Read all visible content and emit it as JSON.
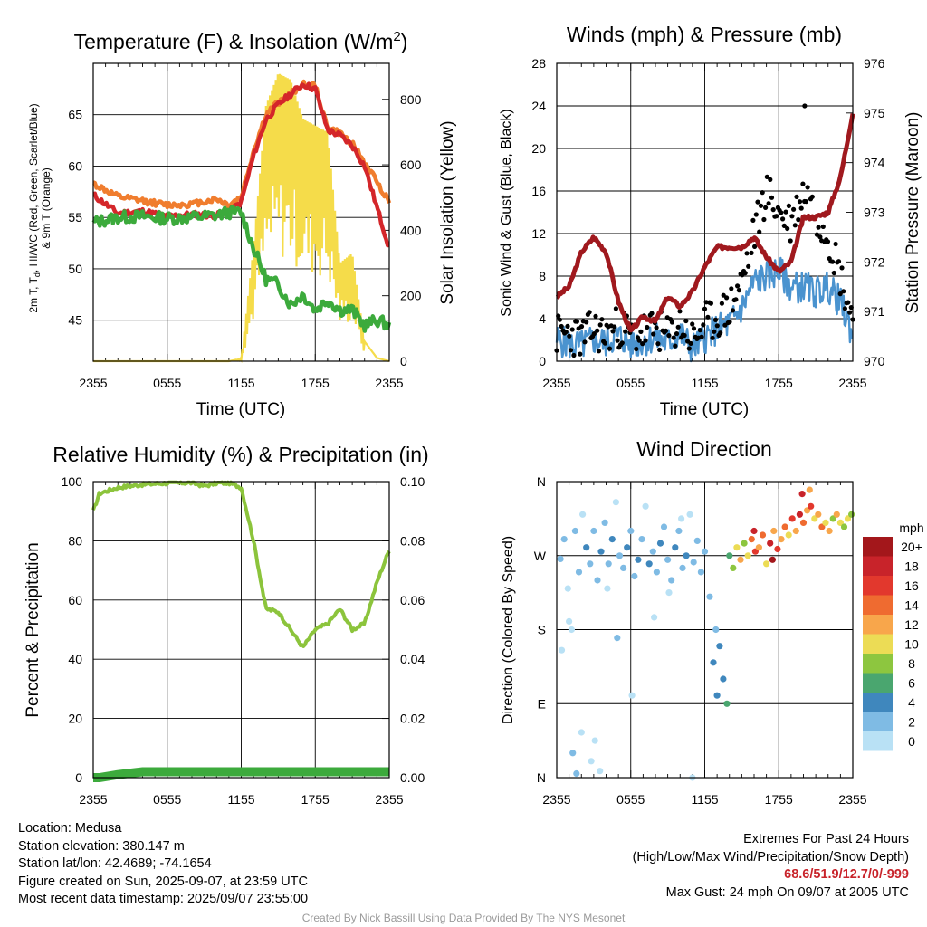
{
  "chart_data": [
    {
      "type": "line",
      "title": "Temperature (F) & Insolation (W/m²)",
      "xlabel": "Time (UTC)",
      "ylabel": "2m T, Td, HI/WC (Red, Green, Scarlet/Blue) & 9m T (Orange)",
      "y2label": "Solar Insolation (Yellow)",
      "x_ticks": [
        "2355",
        "0555",
        "1155",
        "1755",
        "2355"
      ],
      "y_ticks": [
        "45",
        "50",
        "55",
        "60",
        "65"
      ],
      "y2_ticks": [
        "0",
        "200",
        "400",
        "600",
        "800"
      ],
      "ylim": [
        41,
        70
      ],
      "y2lim": [
        0,
        910
      ],
      "x_hours": [
        0,
        2,
        4,
        6,
        8,
        10,
        11,
        12,
        13,
        14,
        15,
        16,
        17,
        18,
        19,
        20,
        21,
        22,
        23,
        24
      ],
      "series": [
        {
          "color": "#d4262a",
          "values": [
            57.2,
            55.4,
            55.6,
            55.1,
            55.3,
            55.2,
            55.5,
            56.5,
            61.0,
            64.5,
            66.0,
            67.0,
            68.0,
            67.5,
            63.5,
            63.0,
            62.0,
            60.0,
            56.0,
            52.0
          ]
        },
        {
          "color": "#f07d2e",
          "values": [
            58.3,
            57.0,
            56.6,
            56.2,
            56.3,
            56.8,
            56.2,
            57.0,
            61.5,
            65.0,
            66.2,
            67.0,
            68.0,
            67.8,
            63.7,
            63.2,
            62.2,
            60.3,
            58.5,
            56.5
          ]
        },
        {
          "color": "#3caa3c",
          "values": [
            54.5,
            55.0,
            55.1,
            54.9,
            55.0,
            55.2,
            55.5,
            55.5,
            52.0,
            49.0,
            48.5,
            46.5,
            47.5,
            46.0,
            47.0,
            46.0,
            46.0,
            44.5,
            45.0,
            44.5
          ]
        },
        {
          "color": "#f5dc4a",
          "values": [
            0,
            0,
            0,
            0,
            0,
            0,
            0,
            8,
            350,
            780,
            880,
            860,
            740,
            720,
            700,
            300,
            330,
            60,
            10,
            0
          ]
        }
      ]
    },
    {
      "type": "line",
      "title": "Winds (mph) & Pressure (mb)",
      "xlabel": "Time (UTC)",
      "ylabel": "Sonic Wind & Gust (Blue, Black)",
      "y2label": "Station Pressure (Maroon)",
      "x_ticks": [
        "2355",
        "0555",
        "1155",
        "1755",
        "2355"
      ],
      "y_ticks": [
        "0",
        "4",
        "8",
        "12",
        "16",
        "20",
        "24",
        "28"
      ],
      "y2_ticks": [
        "970",
        "971",
        "972",
        "973",
        "974",
        "975",
        "976"
      ],
      "ylim": [
        0,
        28
      ],
      "y2lim": [
        970,
        976
      ],
      "x_hours": [
        0,
        1,
        2,
        3,
        4,
        5,
        6,
        7,
        8,
        9,
        10,
        11,
        12,
        13,
        14,
        15,
        16,
        17,
        18,
        19,
        20,
        21,
        22,
        23,
        24
      ],
      "series": [
        {
          "color": "#4a93cf",
          "values": [
            2.0,
            1.6,
            1.5,
            2.0,
            1.8,
            2.4,
            1.6,
            1.9,
            2.2,
            1.7,
            2.6,
            1.2,
            2.2,
            3.0,
            3.5,
            5.0,
            7.5,
            8.0,
            8.5,
            7.0,
            7.0,
            6.5,
            7.0,
            5.5,
            2.5
          ]
        },
        {
          "color": "#000000",
          "values": [
            2.5,
            2.6,
            2.2,
            3.0,
            2.4,
            3.3,
            2.4,
            2.7,
            3.0,
            2.3,
            3.5,
            2.0,
            3.5,
            4.0,
            5.0,
            7.5,
            12.0,
            16.0,
            14.0,
            13.0,
            16.0,
            14.0,
            12.0,
            8.0,
            4.0
          ]
        },
        {
          "color": "#a0191e",
          "values": [
            971.3,
            971.5,
            972.2,
            972.5,
            972.2,
            971.2,
            970.6,
            970.9,
            970.8,
            971.3,
            971.1,
            971.4,
            971.9,
            972.3,
            972.3,
            972.3,
            972.5,
            972.1,
            971.8,
            972.0,
            972.9,
            972.9,
            973.0,
            973.7,
            975.0
          ]
        }
      ],
      "max_gust_point": {
        "x": 20.1,
        "y": 24
      }
    },
    {
      "type": "line",
      "title": "Relative Humidity (%) & Precipitation (in)",
      "ylabel": "Percent & Precipitation",
      "x_ticks": [
        "2355",
        "0555",
        "1155",
        "1755",
        "2355"
      ],
      "y_ticks": [
        "0",
        "20",
        "40",
        "60",
        "80",
        "100"
      ],
      "y2_ticks": [
        "0.00",
        "0.02",
        "0.04",
        "0.06",
        "0.08",
        "0.10"
      ],
      "ylim": [
        0,
        100
      ],
      "y2lim": [
        0,
        0.1
      ],
      "x_hours": [
        0,
        0.5,
        2,
        4,
        6,
        8,
        9,
        10,
        11,
        12,
        13,
        14,
        15,
        16,
        17,
        18,
        19,
        20,
        21,
        22,
        23,
        24
      ],
      "series": [
        {
          "color": "#8cc43c",
          "values": [
            90,
            96,
            98,
            99,
            99.5,
            99.6,
            98.5,
            99.5,
            99.6,
            98.0,
            80.0,
            57.0,
            56.0,
            50.0,
            44.0,
            50.0,
            52.0,
            57.0,
            50.0,
            52.0,
            66.0,
            77.0
          ]
        },
        {
          "color": "#3caa3c",
          "values": [
            0,
            0,
            0.001,
            0.002,
            0.002,
            0.002,
            0.002,
            0.002,
            0.002,
            0.002,
            0.002,
            0.002,
            0.002,
            0.002,
            0.002,
            0.002,
            0.002,
            0.002,
            0.002,
            0.002,
            0.002,
            0.002
          ]
        }
      ]
    },
    {
      "type": "scatter",
      "title": "Wind Direction",
      "ylabel": "Direction (Colored By Speed)",
      "x_ticks": [
        "2355",
        "0555",
        "1155",
        "1755",
        "2355"
      ],
      "y_ticks": [
        "N",
        "E",
        "S",
        "W",
        "N"
      ],
      "y_values_deg": [
        0,
        90,
        180,
        270,
        360
      ],
      "colorbar_title": "mph",
      "colorbar_labels": [
        "20+",
        "18",
        "16",
        "14",
        "12",
        "10",
        "8",
        "6",
        "4",
        "2",
        "0"
      ],
      "colorbar_colors": [
        "#a3171b",
        "#c8232a",
        "#e2382d",
        "#ef6b30",
        "#f8a64b",
        "#ecdc55",
        "#8dc63f",
        "#4aa66f",
        "#3f87bd",
        "#7fbbe4",
        "#b9e1f5"
      ],
      "points": [
        {
          "x": 0.3,
          "y": 266,
          "s": 1
        },
        {
          "x": 0.6,
          "y": 290,
          "s": 1
        },
        {
          "x": 0.9,
          "y": 230,
          "s": 0
        },
        {
          "x": 1.2,
          "y": 180,
          "s": 0
        },
        {
          "x": 1.5,
          "y": 300,
          "s": 1
        },
        {
          "x": 1.8,
          "y": 250,
          "s": 1
        },
        {
          "x": 2.1,
          "y": 320,
          "s": 0
        },
        {
          "x": 2.4,
          "y": 280,
          "s": 2
        },
        {
          "x": 2.7,
          "y": 260,
          "s": 1
        },
        {
          "x": 3.0,
          "y": 300,
          "s": 1
        },
        {
          "x": 3.3,
          "y": 240,
          "s": 1
        },
        {
          "x": 3.6,
          "y": 275,
          "s": 2
        },
        {
          "x": 3.9,
          "y": 310,
          "s": 1
        },
        {
          "x": 4.2,
          "y": 260,
          "s": 1
        },
        {
          "x": 4.5,
          "y": 290,
          "s": 2
        },
        {
          "x": 4.8,
          "y": 335,
          "s": 0
        },
        {
          "x": 5.1,
          "y": 270,
          "s": 1
        },
        {
          "x": 5.4,
          "y": 255,
          "s": 1
        },
        {
          "x": 5.7,
          "y": 280,
          "s": 2
        },
        {
          "x": 6.0,
          "y": 300,
          "s": 1
        },
        {
          "x": 6.3,
          "y": 245,
          "s": 1
        },
        {
          "x": 6.6,
          "y": 265,
          "s": 2
        },
        {
          "x": 6.9,
          "y": 290,
          "s": 1
        },
        {
          "x": 7.2,
          "y": 330,
          "s": 0
        },
        {
          "x": 7.5,
          "y": 260,
          "s": 2
        },
        {
          "x": 7.8,
          "y": 275,
          "s": 1
        },
        {
          "x": 8.1,
          "y": 250,
          "s": 1
        },
        {
          "x": 8.4,
          "y": 285,
          "s": 2
        },
        {
          "x": 8.7,
          "y": 305,
          "s": 1
        },
        {
          "x": 9.0,
          "y": 265,
          "s": 1
        },
        {
          "x": 9.3,
          "y": 240,
          "s": 1
        },
        {
          "x": 9.6,
          "y": 280,
          "s": 2
        },
        {
          "x": 9.9,
          "y": 300,
          "s": 1
        },
        {
          "x": 10.2,
          "y": 255,
          "s": 1
        },
        {
          "x": 10.5,
          "y": 270,
          "s": 2
        },
        {
          "x": 10.8,
          "y": 320,
          "s": 0
        },
        {
          "x": 11.1,
          "y": 262,
          "s": 1
        },
        {
          "x": 11.4,
          "y": 288,
          "s": 1
        },
        {
          "x": 11.7,
          "y": 250,
          "s": 1
        },
        {
          "x": 12.0,
          "y": 275,
          "s": 1
        },
        {
          "x": 0.4,
          "y": 155,
          "s": 0
        },
        {
          "x": 1.0,
          "y": 190,
          "s": 0
        },
        {
          "x": 1.3,
          "y": 30,
          "s": 1
        },
        {
          "x": 1.6,
          "y": 5,
          "s": 1
        },
        {
          "x": 2.0,
          "y": 55,
          "s": 0
        },
        {
          "x": 2.8,
          "y": 20,
          "s": 0
        },
        {
          "x": 3.1,
          "y": 45,
          "s": 0
        },
        {
          "x": 3.5,
          "y": 8,
          "s": 0
        },
        {
          "x": 4.1,
          "y": 230,
          "s": 0
        },
        {
          "x": 4.9,
          "y": 170,
          "s": 1
        },
        {
          "x": 6.1,
          "y": 100,
          "s": 0
        },
        {
          "x": 7.9,
          "y": 195,
          "s": 0
        },
        {
          "x": 9.1,
          "y": 225,
          "s": 0
        },
        {
          "x": 10.1,
          "y": 315,
          "s": 0
        },
        {
          "x": 11.0,
          "y": 0,
          "s": 0
        },
        {
          "x": 12.4,
          "y": 220,
          "s": 1
        },
        {
          "x": 12.9,
          "y": 180,
          "s": 1
        },
        {
          "x": 13.2,
          "y": 160,
          "s": 2
        },
        {
          "x": 13.5,
          "y": 120,
          "s": 2
        },
        {
          "x": 13.8,
          "y": 90,
          "s": 3
        },
        {
          "x": 13.0,
          "y": 100,
          "s": 2
        },
        {
          "x": 12.7,
          "y": 140,
          "s": 2
        },
        {
          "x": 14.0,
          "y": 270,
          "s": 3
        },
        {
          "x": 14.3,
          "y": 255,
          "s": 4
        },
        {
          "x": 14.6,
          "y": 280,
          "s": 5
        },
        {
          "x": 14.9,
          "y": 265,
          "s": 6
        },
        {
          "x": 15.2,
          "y": 285,
          "s": 4
        },
        {
          "x": 15.5,
          "y": 270,
          "s": 5
        },
        {
          "x": 15.8,
          "y": 290,
          "s": 7
        },
        {
          "x": 16.1,
          "y": 275,
          "s": 8
        },
        {
          "x": 16.4,
          "y": 280,
          "s": 6
        },
        {
          "x": 16.7,
          "y": 295,
          "s": 7
        },
        {
          "x": 17.0,
          "y": 260,
          "s": 5
        },
        {
          "x": 17.3,
          "y": 285,
          "s": 9
        },
        {
          "x": 17.6,
          "y": 300,
          "s": 6
        },
        {
          "x": 17.9,
          "y": 278,
          "s": 8
        },
        {
          "x": 18.2,
          "y": 290,
          "s": 6
        },
        {
          "x": 18.5,
          "y": 305,
          "s": 7
        },
        {
          "x": 18.8,
          "y": 295,
          "s": 5
        },
        {
          "x": 19.1,
          "y": 315,
          "s": 8
        },
        {
          "x": 19.4,
          "y": 300,
          "s": 6
        },
        {
          "x": 19.7,
          "y": 320,
          "s": 9
        },
        {
          "x": 20.0,
          "y": 310,
          "s": 7
        },
        {
          "x": 20.3,
          "y": 325,
          "s": 6
        },
        {
          "x": 20.6,
          "y": 330,
          "s": 8
        },
        {
          "x": 20.9,
          "y": 315,
          "s": 5
        },
        {
          "x": 21.2,
          "y": 320,
          "s": 6
        },
        {
          "x": 21.5,
          "y": 305,
          "s": 7
        },
        {
          "x": 21.8,
          "y": 310,
          "s": 5
        },
        {
          "x": 22.1,
          "y": 300,
          "s": 6
        },
        {
          "x": 22.4,
          "y": 315,
          "s": 4
        },
        {
          "x": 22.7,
          "y": 320,
          "s": 6
        },
        {
          "x": 23.0,
          "y": 310,
          "s": 5
        },
        {
          "x": 23.3,
          "y": 305,
          "s": 4
        },
        {
          "x": 23.6,
          "y": 315,
          "s": 5
        },
        {
          "x": 23.9,
          "y": 320,
          "s": 4
        },
        {
          "x": 19.9,
          "y": 345,
          "s": 9
        },
        {
          "x": 20.5,
          "y": 350,
          "s": 6
        },
        {
          "x": 17.5,
          "y": 265,
          "s": 10
        },
        {
          "x": 16.0,
          "y": 300,
          "s": 9
        }
      ]
    }
  ],
  "info_left": [
    "Location: Medusa",
    "Station elevation: 380.147 m",
    "Station lat/lon: 42.4689; -74.1654",
    "Figure created on Sun, 2025-09-07, at 23:59 UTC",
    "Most recent data timestamp: 2025/09/07 23:55:00"
  ],
  "info_right": {
    "line1": "Extremes For Past 24 Hours",
    "line2": "(High/Low/Max Wind/Precipitation/Snow Depth)",
    "extremes": "68.6/51.9/12.7/0/-999",
    "gust": "Max Gust: 24 mph On 09/07 at 2005 UTC"
  },
  "credit": "Created By Nick Bassill Using Data Provided By The NYS Mesonet"
}
